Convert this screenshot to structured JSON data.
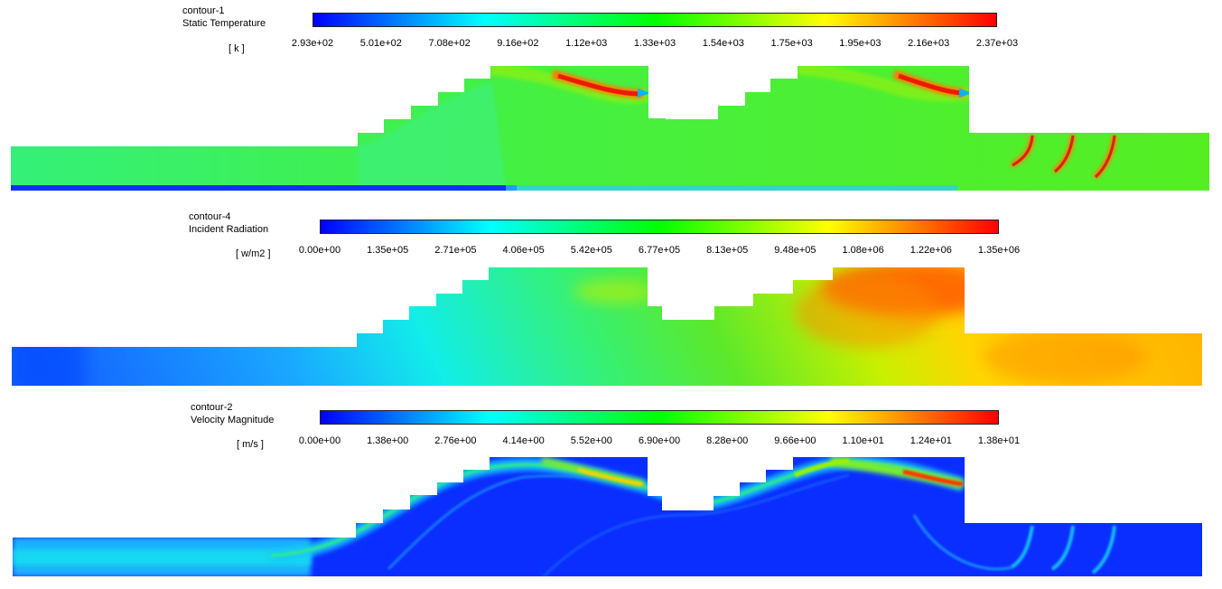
{
  "contours": [
    {
      "name": "contour-1",
      "variable": "Static Temperature",
      "unit": "[ k ]",
      "ticks": [
        "2.93e+02",
        "5.01e+02",
        "7.08e+02",
        "9.16e+02",
        "1.12e+03",
        "1.33e+03",
        "1.54e+03",
        "1.75e+03",
        "1.95e+03",
        "2.16e+03",
        "2.37e+03"
      ]
    },
    {
      "name": "contour-4",
      "variable": "Incident Radiation",
      "unit": "[ w/m2 ]",
      "ticks": [
        "0.00e+00",
        "1.35e+05",
        "2.71e+05",
        "4.06e+05",
        "5.42e+05",
        "6.77e+05",
        "8.13e+05",
        "9.48e+05",
        "1.08e+06",
        "1.22e+06",
        "1.35e+06"
      ]
    },
    {
      "name": "contour-2",
      "variable": "Velocity Magnitude",
      "unit": "[ m/s ]",
      "ticks": [
        "0.00e+00",
        "1.38e+00",
        "2.76e+00",
        "4.14e+00",
        "5.52e+00",
        "6.90e+00",
        "8.28e+00",
        "9.66e+00",
        "1.10e+01",
        "1.24e+01",
        "1.38e+01"
      ]
    }
  ],
  "colormap": [
    "#0000ff",
    "#00ffff",
    "#00ff00",
    "#ffff00",
    "#ff0000"
  ]
}
